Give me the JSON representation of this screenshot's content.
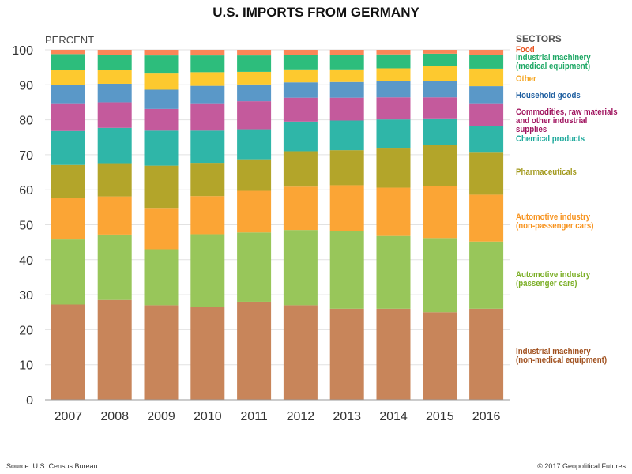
{
  "chart_data": {
    "type": "bar",
    "stacked": true,
    "title": "U.S. IMPORTS FROM GERMANY",
    "ylabel": "PERCENT",
    "ylim": [
      0,
      100
    ],
    "yticks": [
      0,
      10,
      20,
      30,
      40,
      50,
      60,
      70,
      80,
      90,
      100
    ],
    "grid": true,
    "legend_title": "SECTORS",
    "legend_placement": "right",
    "categories": [
      "2007",
      "2008",
      "2009",
      "2010",
      "2011",
      "2012",
      "2013",
      "2014",
      "2015",
      "2016"
    ],
    "series": [
      {
        "name": "Industrial machinery (non-medical equipment)",
        "lines": [
          "Industrial machinery",
          "(non-medical equipment)"
        ],
        "color": "#c8855a",
        "label_color": "#a0501e",
        "values": [
          27.2,
          28.5,
          27.0,
          26.5,
          28.0,
          27.0,
          26.0,
          26.0,
          25.0,
          26.0
        ]
      },
      {
        "name": "Automotive industry (passenger cars)",
        "lines": [
          "Automotive industry",
          "(passenger cars)"
        ],
        "color": "#98c65a",
        "label_color": "#7aae24",
        "values": [
          18.6,
          18.7,
          16.0,
          20.8,
          19.8,
          21.5,
          22.3,
          20.8,
          21.2,
          19.2
        ]
      },
      {
        "name": "Automotive industry (non-passenger cars)",
        "lines": [
          "Automotive industry",
          "(non-passenger cars)"
        ],
        "color": "#fba535",
        "label_color": "#f7931e",
        "values": [
          11.9,
          10.9,
          11.8,
          10.9,
          11.9,
          12.4,
          13.0,
          13.8,
          14.8,
          13.4
        ]
      },
      {
        "name": "Pharmaceuticals",
        "lines": [
          "Pharmaceuticals"
        ],
        "color": "#b3a52a",
        "label_color": "#a39a1e",
        "values": [
          9.4,
          9.5,
          12.1,
          9.5,
          9.0,
          10.1,
          10.0,
          11.4,
          11.9,
          12.0
        ]
      },
      {
        "name": "Chemical products",
        "lines": [
          "Chemical products"
        ],
        "color": "#2fb6a8",
        "label_color": "#1aa89a",
        "values": [
          9.7,
          10.1,
          10.0,
          9.2,
          8.6,
          8.5,
          8.5,
          8.1,
          7.5,
          7.7
        ]
      },
      {
        "name": "Commodities, raw materials and other industrial supplies",
        "lines": [
          "Commodities, raw materials",
          "and other industrial supplies"
        ],
        "color": "#c45a9c",
        "label_color": "#a0145f",
        "values": [
          7.7,
          7.3,
          6.2,
          7.6,
          8.0,
          6.8,
          6.5,
          6.3,
          6.0,
          6.2
        ]
      },
      {
        "name": "Household goods",
        "lines": [
          "Household goods"
        ],
        "color": "#5a98c8",
        "label_color": "#1f5fa0",
        "values": [
          5.5,
          5.3,
          5.5,
          5.2,
          4.8,
          4.4,
          4.5,
          4.7,
          4.6,
          5.1
        ]
      },
      {
        "name": "Other",
        "lines": [
          "Other"
        ],
        "color": "#fdc92f",
        "label_color": "#f5a623",
        "values": [
          4.2,
          3.9,
          4.6,
          3.9,
          3.6,
          3.7,
          3.6,
          3.6,
          4.3,
          5.0
        ]
      },
      {
        "name": "Industrial machinery (medical equipment)",
        "lines": [
          "Industrial machinery",
          "(medical equipment)"
        ],
        "color": "#2dbd7c",
        "label_color": "#1ea865",
        "values": [
          4.6,
          4.4,
          5.2,
          4.8,
          4.7,
          4.1,
          4.1,
          4.0,
          3.6,
          3.9
        ]
      },
      {
        "name": "Food",
        "lines": [
          "Food"
        ],
        "color": "#fb8657",
        "label_color": "#e8501c",
        "values": [
          1.2,
          1.4,
          1.6,
          1.6,
          1.6,
          1.5,
          1.5,
          1.3,
          1.1,
          1.5
        ]
      }
    ]
  },
  "footer": {
    "source": "Source: U.S. Census Bureau",
    "copyright": "© 2017 Geopolitical Futures"
  }
}
